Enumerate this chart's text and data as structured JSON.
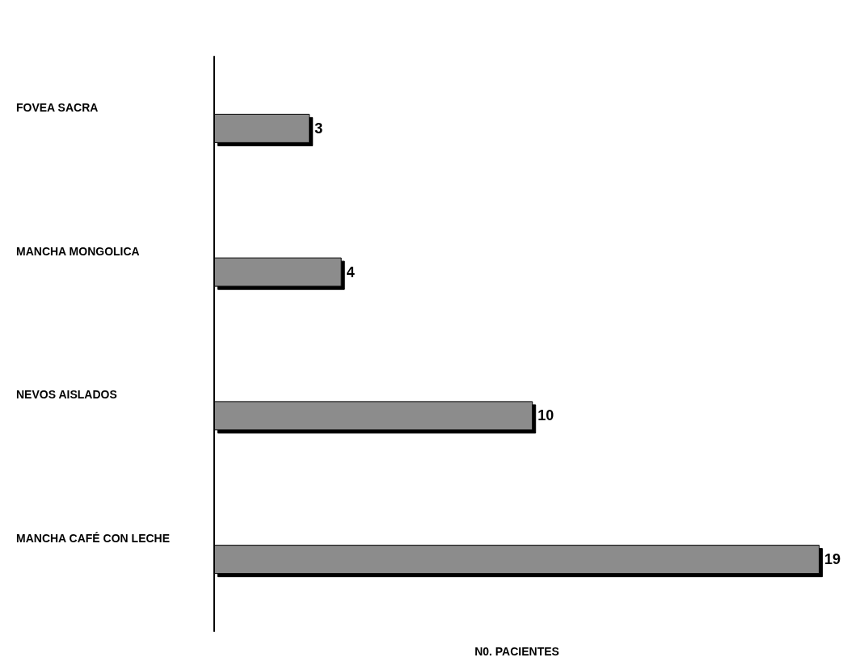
{
  "chart_data": {
    "type": "bar",
    "orientation": "horizontal",
    "tick_labels": "y",
    "categories": [
      "FOVEA SACRA",
      "MANCHA MONGOLICA",
      "NEVOS AISLADOS",
      "MANCHA CAFÉ CON LECHE"
    ],
    "values": [
      3,
      4,
      10,
      19
    ],
    "value_labels": [
      "3",
      "4",
      "10",
      "19"
    ],
    "color": "#8c8c8c",
    "xlabel": "N0. PACIENTES",
    "grid": false
  }
}
